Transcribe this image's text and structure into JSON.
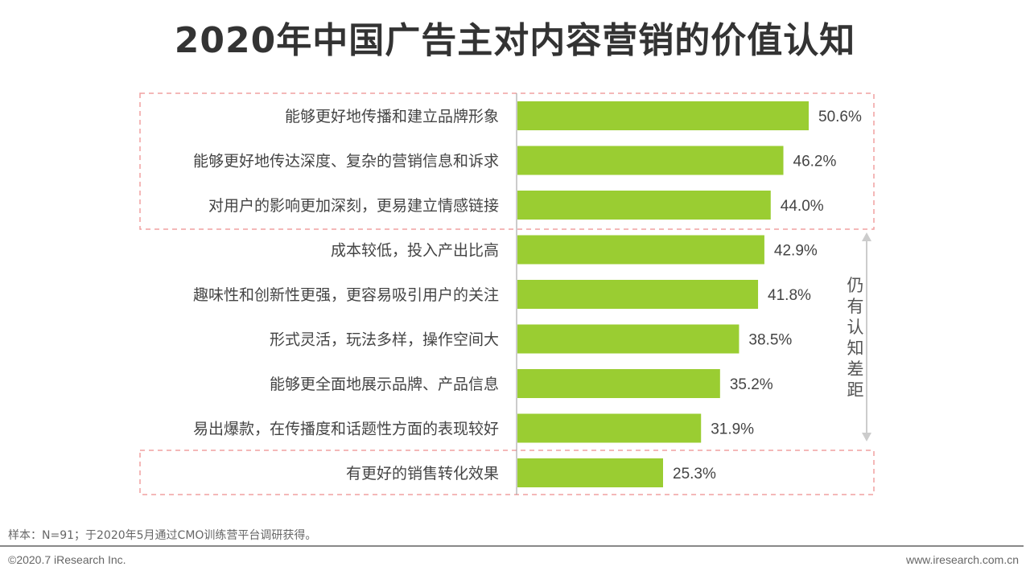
{
  "chart_data": {
    "type": "bar",
    "orientation": "horizontal",
    "title": "2020年中国广告主对内容营销的价值认知",
    "categories": [
      "能够更好地传播和建立品牌形象",
      "能够更好地传达深度、复杂的营销信息和诉求",
      "对用户的影响更加深刻，更易建立情感链接",
      "成本较低，投入产出比高",
      "趣味性和创新性更强，更容易吸引用户的关注",
      "形式灵活，玩法多样，操作空间大",
      "能够更全面地展示品牌、产品信息",
      "易出爆款，在传播度和话题性方面的表现较好",
      "有更好的销售转化效果"
    ],
    "values": [
      50.6,
      46.2,
      44.0,
      42.9,
      41.8,
      38.5,
      35.2,
      31.9,
      25.3
    ],
    "value_labels": [
      "50.6%",
      "46.2%",
      "44.0%",
      "42.9%",
      "41.8%",
      "38.5%",
      "35.2%",
      "31.9%",
      "25.3%"
    ],
    "unit": "%",
    "xlim": [
      0,
      55
    ],
    "grid": false,
    "legend": "none",
    "bar_color": "#9ACD32",
    "highlight_color": "#F0A0A0",
    "annotation": "仍有认知差距"
  },
  "footer": {
    "note": "样本：N=91；于2020年5月通过CMO训练营平台调研获得。",
    "copyright": "©2020.7 iResearch Inc.",
    "website": "www.iresearch.com.cn"
  }
}
